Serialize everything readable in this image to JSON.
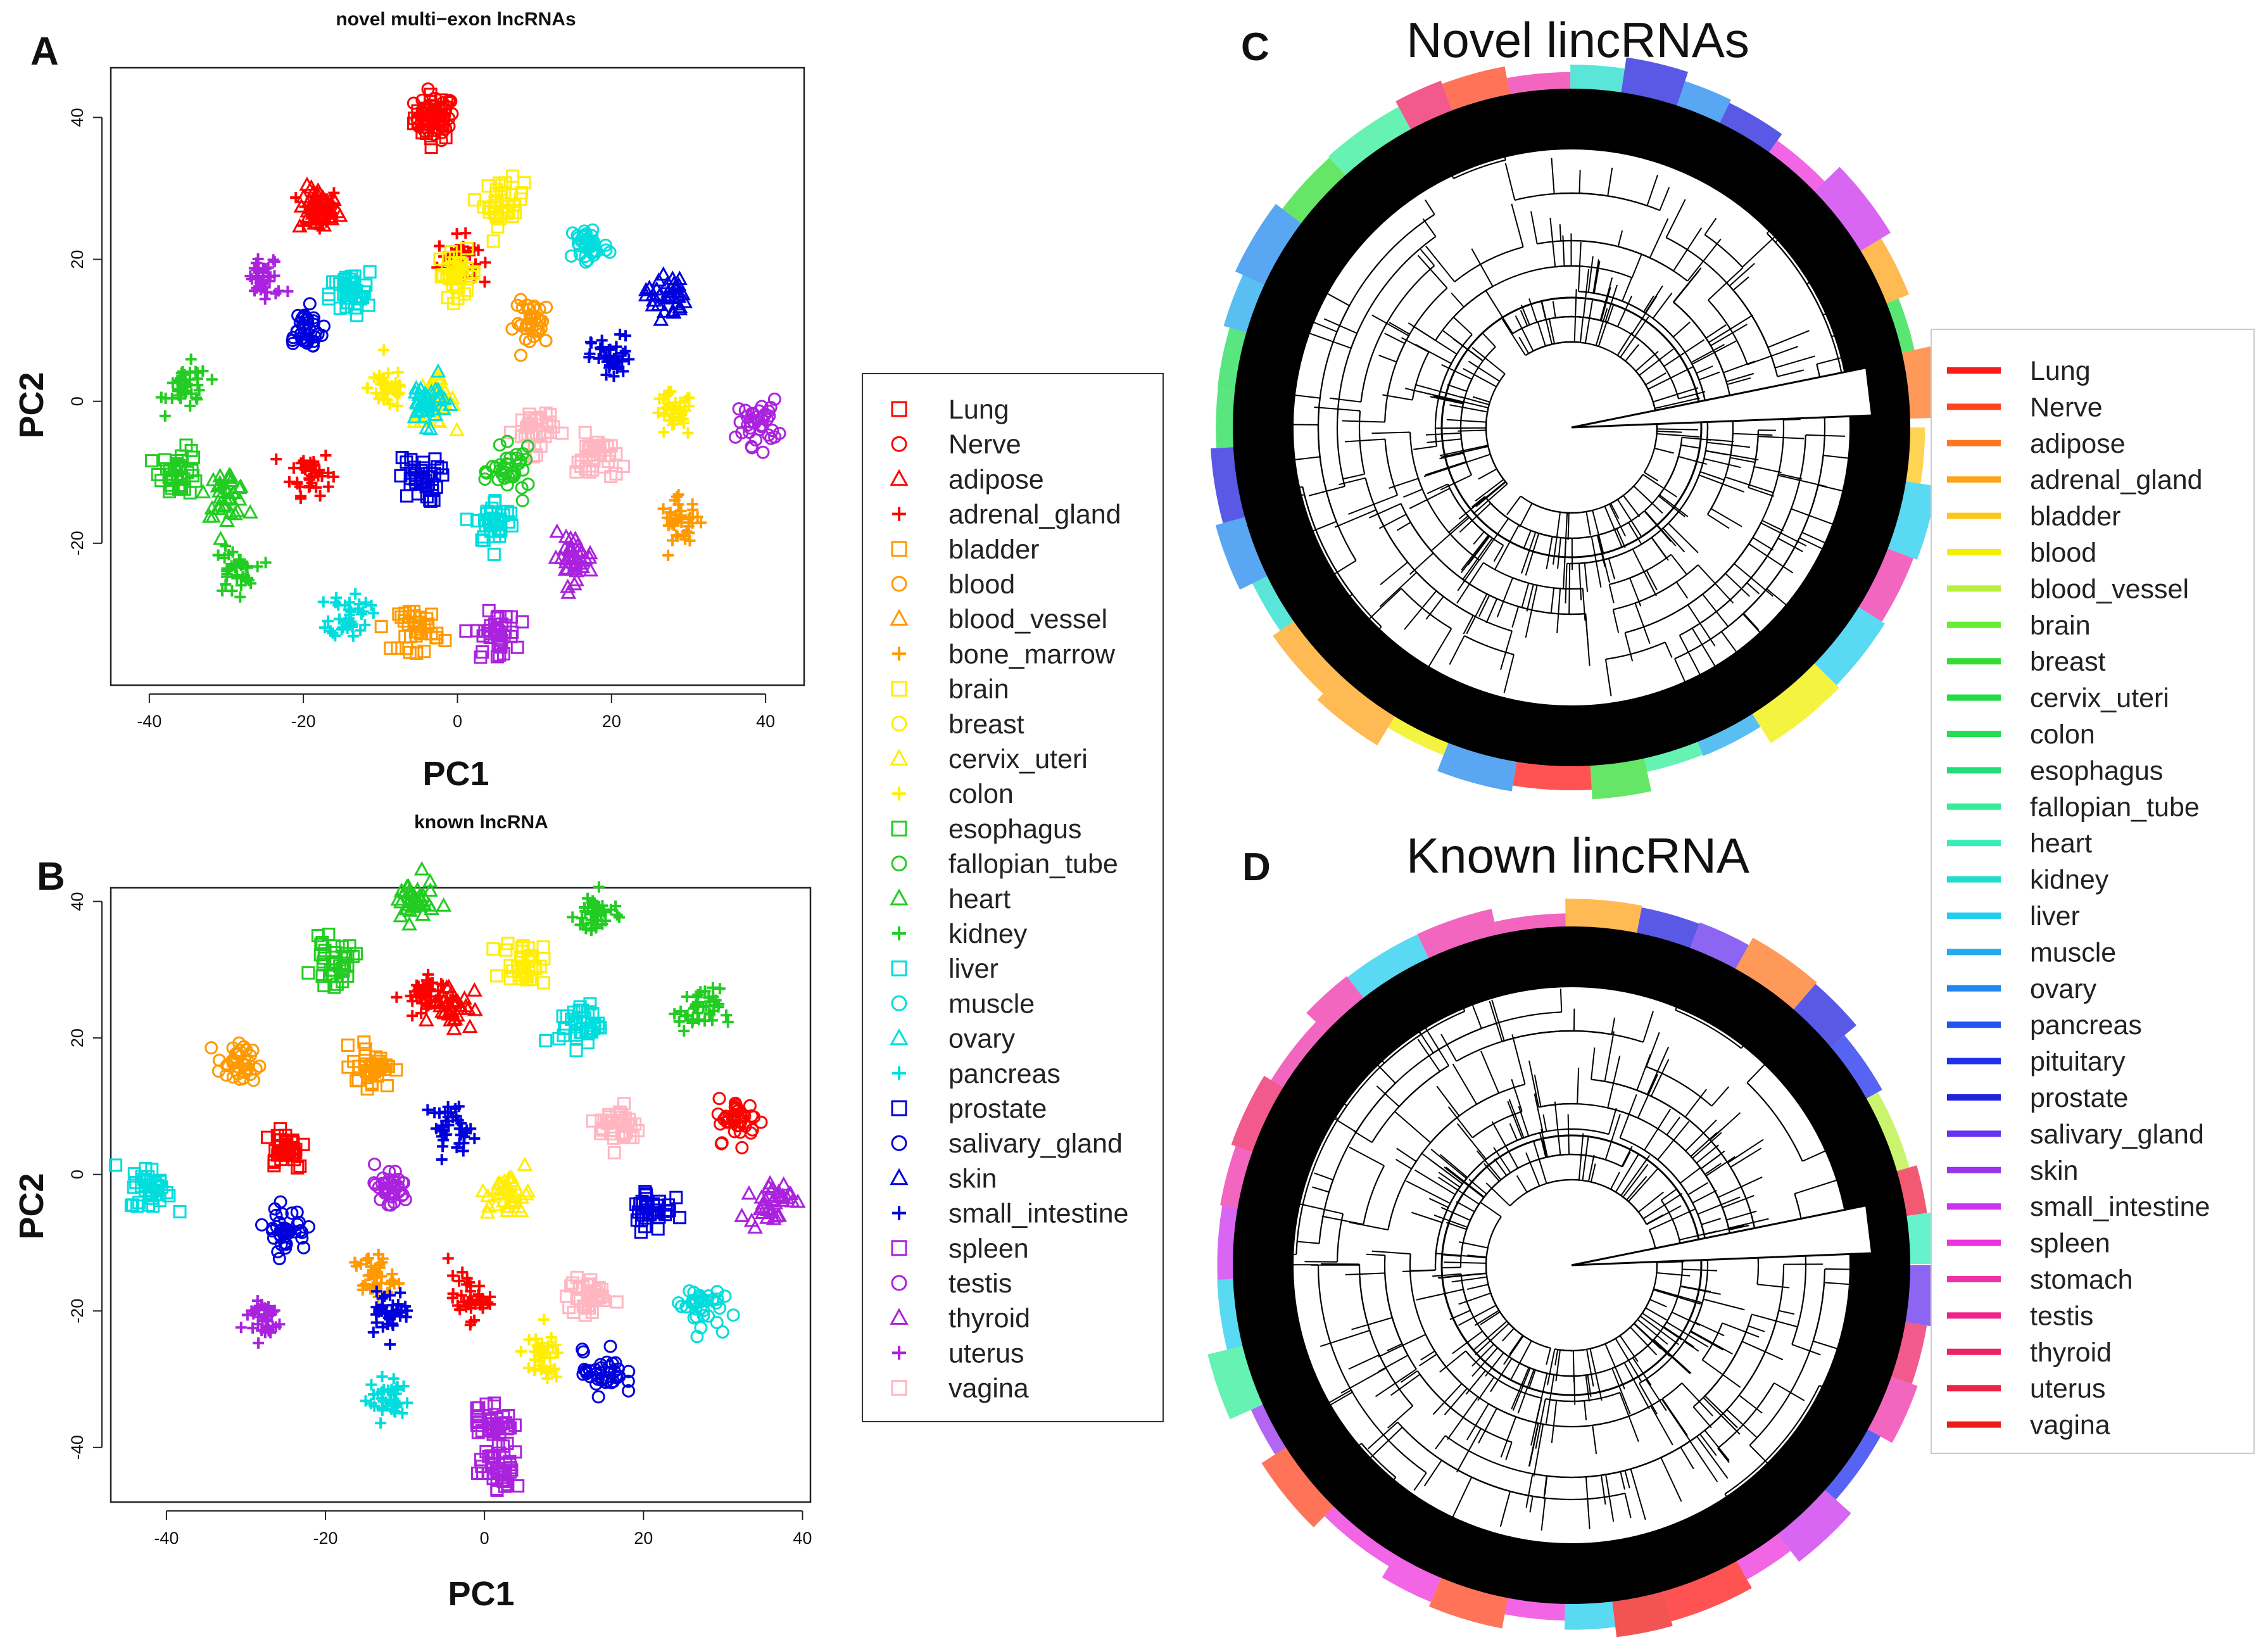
{
  "panels": {
    "A": "A",
    "B": "B",
    "C": "C",
    "D": "D"
  },
  "chart_data": [
    {
      "id": "A",
      "type": "scatter",
      "title": "novel multi−exon lncRNAs",
      "xlabel": "PC1",
      "ylabel": "PC2",
      "xlim": [
        -45,
        45
      ],
      "ylim": [
        -40,
        47
      ],
      "xticks": [
        -40,
        -20,
        0,
        20,
        40
      ],
      "yticks": [
        -20,
        0,
        20,
        40
      ],
      "clusters": [
        {
          "tissue": "Lung",
          "x": -3,
          "y": 40
        },
        {
          "tissue": "Nerve",
          "x": -3,
          "y": 40
        },
        {
          "tissue": "adipose",
          "x": -18,
          "y": 27
        },
        {
          "tissue": "adrenal_gland",
          "x": -18,
          "y": 27
        },
        {
          "tissue": "adrenal_gland",
          "x": -19,
          "y": -10
        },
        {
          "tissue": "adrenal_gland",
          "x": 0,
          "y": 20
        },
        {
          "tissue": "brain",
          "x": 6,
          "y": 28
        },
        {
          "tissue": "brain",
          "x": 0,
          "y": 18
        },
        {
          "tissue": "cervix_uteri",
          "x": -3,
          "y": 0
        },
        {
          "tissue": "colon",
          "x": -9,
          "y": 2
        },
        {
          "tissue": "colon",
          "x": 28,
          "y": -2
        },
        {
          "tissue": "kidney",
          "x": -35,
          "y": 2
        },
        {
          "tissue": "esophagus",
          "x": -36,
          "y": -10
        },
        {
          "tissue": "heart",
          "x": -30,
          "y": -13
        },
        {
          "tissue": "kidney",
          "x": -29,
          "y": -24
        },
        {
          "tissue": "liver",
          "x": -14,
          "y": 15
        },
        {
          "tissue": "muscle",
          "x": 17,
          "y": 22
        },
        {
          "tissue": "liver",
          "x": 5,
          "y": -17
        },
        {
          "tissue": "pancreas",
          "x": -14,
          "y": -30
        },
        {
          "tissue": "salivary_gland",
          "x": -20,
          "y": 10
        },
        {
          "tissue": "prostate",
          "x": -5,
          "y": -11
        },
        {
          "tissue": "skin",
          "x": 27,
          "y": 15
        },
        {
          "tissue": "small_intestine",
          "x": 20,
          "y": 6
        },
        {
          "tissue": "uterus",
          "x": -25,
          "y": 17
        },
        {
          "tissue": "testis",
          "x": 39,
          "y": -3
        },
        {
          "tissue": "spleen",
          "x": 5,
          "y": -33
        },
        {
          "tissue": "thyroid",
          "x": 15,
          "y": -22
        },
        {
          "tissue": "blood",
          "x": 10,
          "y": 11
        },
        {
          "tissue": "bladder",
          "x": -5,
          "y": -32
        },
        {
          "tissue": "bone_marrow",
          "x": 29,
          "y": -17
        },
        {
          "tissue": "vagina",
          "x": 10,
          "y": -4
        },
        {
          "tissue": "vagina",
          "x": 18,
          "y": -8
        },
        {
          "tissue": "ovary",
          "x": -4,
          "y": 0
        },
        {
          "tissue": "fallopian_tube",
          "x": 7,
          "y": -10
        }
      ]
    },
    {
      "id": "B",
      "type": "scatter",
      "title": "known lncRNA",
      "xlabel": "PC1",
      "ylabel": "PC2",
      "xlim": [
        -47,
        41
      ],
      "ylim": [
        -48,
        42
      ],
      "xticks": [
        -40,
        -20,
        0,
        20,
        40
      ],
      "yticks": [
        -40,
        -20,
        0,
        20,
        40
      ],
      "clusters": [
        {
          "tissue": "heart",
          "x": -9,
          "y": 40
        },
        {
          "tissue": "kidney",
          "x": 14,
          "y": 38
        },
        {
          "tissue": "esophagus",
          "x": -19,
          "y": 31
        },
        {
          "tissue": "brain",
          "x": 5,
          "y": 31
        },
        {
          "tissue": "adipose",
          "x": -4,
          "y": 25
        },
        {
          "tissue": "adrenal_gland",
          "x": -8,
          "y": 26
        },
        {
          "tissue": "kidney",
          "x": 27,
          "y": 24
        },
        {
          "tissue": "blood",
          "x": -31,
          "y": 16
        },
        {
          "tissue": "bladder",
          "x": -14,
          "y": 16
        },
        {
          "tissue": "liver",
          "x": 12,
          "y": 22
        },
        {
          "tissue": "vagina",
          "x": 17,
          "y": 7
        },
        {
          "tissue": "Lung",
          "x": -25,
          "y": 4
        },
        {
          "tissue": "Nerve",
          "x": 32,
          "y": 8
        },
        {
          "tissue": "liver",
          "x": -42,
          "y": -2
        },
        {
          "tissue": "prostate",
          "x": 21,
          "y": -5
        },
        {
          "tissue": "salivary_gland",
          "x": -25,
          "y": -8
        },
        {
          "tissue": "testis",
          "x": -12,
          "y": -2
        },
        {
          "tissue": "thyroid",
          "x": 36,
          "y": -4
        },
        {
          "tissue": "small_intestine",
          "x": -4,
          "y": 7
        },
        {
          "tissue": "cervix_uteri",
          "x": 3,
          "y": -3
        },
        {
          "tissue": "bone_marrow",
          "x": -14,
          "y": -15
        },
        {
          "tissue": "adrenal_gland",
          "x": -2,
          "y": -18
        },
        {
          "tissue": "vagina",
          "x": 13,
          "y": -18
        },
        {
          "tissue": "muscle",
          "x": 27,
          "y": -19
        },
        {
          "tissue": "uterus",
          "x": -28,
          "y": -21
        },
        {
          "tissue": "pancreas",
          "x": -12,
          "y": -33
        },
        {
          "tissue": "colon",
          "x": 7,
          "y": -27
        },
        {
          "tissue": "salivary_gland",
          "x": 15,
          "y": -29
        },
        {
          "tissue": "spleen",
          "x": 1,
          "y": -36
        },
        {
          "tissue": "spleen",
          "x": 2,
          "y": -43
        },
        {
          "tissue": "small_intestine",
          "x": -12,
          "y": -20
        }
      ]
    },
    {
      "id": "C",
      "type": "dendrogram",
      "title": "Novel lincRNAs",
      "legend_position": "right"
    },
    {
      "id": "D",
      "type": "dendrogram",
      "title": "Known lincRNA",
      "legend_position": "right"
    }
  ],
  "legend_scatter": [
    {
      "label": "Lung",
      "color": "#ff0000",
      "shape": "square"
    },
    {
      "label": "Nerve",
      "color": "#ff0000",
      "shape": "circle"
    },
    {
      "label": "adipose",
      "color": "#ff0000",
      "shape": "triangle"
    },
    {
      "label": "adrenal_gland",
      "color": "#ff0000",
      "shape": "plus"
    },
    {
      "label": "bladder",
      "color": "#ff9900",
      "shape": "square"
    },
    {
      "label": "blood",
      "color": "#ff9900",
      "shape": "circle"
    },
    {
      "label": "blood_vessel",
      "color": "#ff9900",
      "shape": "triangle"
    },
    {
      "label": "bone_marrow",
      "color": "#ff9900",
      "shape": "plus"
    },
    {
      "label": "brain",
      "color": "#ffee00",
      "shape": "square"
    },
    {
      "label": "breast",
      "color": "#ffee00",
      "shape": "circle"
    },
    {
      "label": "cervix_uteri",
      "color": "#ffee00",
      "shape": "triangle"
    },
    {
      "label": "colon",
      "color": "#ffee00",
      "shape": "plus"
    },
    {
      "label": "esophagus",
      "color": "#22cc22",
      "shape": "square"
    },
    {
      "label": "fallopian_tube",
      "color": "#22cc22",
      "shape": "circle"
    },
    {
      "label": "heart",
      "color": "#22cc22",
      "shape": "triangle"
    },
    {
      "label": "kidney",
      "color": "#22cc22",
      "shape": "plus"
    },
    {
      "label": "liver",
      "color": "#00dddd",
      "shape": "square"
    },
    {
      "label": "muscle",
      "color": "#00dddd",
      "shape": "circle"
    },
    {
      "label": "ovary",
      "color": "#00dddd",
      "shape": "triangle"
    },
    {
      "label": "pancreas",
      "color": "#00dddd",
      "shape": "plus"
    },
    {
      "label": "prostate",
      "color": "#0000dd",
      "shape": "square"
    },
    {
      "label": "salivary_gland",
      "color": "#0000dd",
      "shape": "circle"
    },
    {
      "label": "skin",
      "color": "#0000dd",
      "shape": "triangle"
    },
    {
      "label": "small_intestine",
      "color": "#0000dd",
      "shape": "plus"
    },
    {
      "label": "spleen",
      "color": "#aa22dd",
      "shape": "square"
    },
    {
      "label": "testis",
      "color": "#aa22dd",
      "shape": "circle"
    },
    {
      "label": "thyroid",
      "color": "#aa22dd",
      "shape": "triangle"
    },
    {
      "label": "uterus",
      "color": "#aa22dd",
      "shape": "plus"
    },
    {
      "label": "vagina",
      "color": "#ffb6c1",
      "shape": "square"
    }
  ],
  "legend_tree": [
    {
      "label": "Lung",
      "color": "#ff1a1a"
    },
    {
      "label": "Nerve",
      "color": "#ff4422"
    },
    {
      "label": "adipose",
      "color": "#ff7722"
    },
    {
      "label": "adrenal_gland",
      "color": "#ffa31a"
    },
    {
      "label": "bladder",
      "color": "#ffc61a"
    },
    {
      "label": "blood",
      "color": "#f0f000"
    },
    {
      "label": "blood_vessel",
      "color": "#b8f03c"
    },
    {
      "label": "brain",
      "color": "#66ee33"
    },
    {
      "label": "breast",
      "color": "#33dd33"
    },
    {
      "label": "cervix_uteri",
      "color": "#22dd44"
    },
    {
      "label": "colon",
      "color": "#22dd55"
    },
    {
      "label": "esophagus",
      "color": "#22dd77"
    },
    {
      "label": "fallopian_tube",
      "color": "#33ee99"
    },
    {
      "label": "heart",
      "color": "#33eebb"
    },
    {
      "label": "kidney",
      "color": "#22ddcc"
    },
    {
      "label": "liver",
      "color": "#22ccee"
    },
    {
      "label": "muscle",
      "color": "#22aaee"
    },
    {
      "label": "ovary",
      "color": "#2288ee"
    },
    {
      "label": "pancreas",
      "color": "#2255ee"
    },
    {
      "label": "pituitary",
      "color": "#1f2fee"
    },
    {
      "label": "prostate",
      "color": "#2222dd"
    },
    {
      "label": "salivary_gland",
      "color": "#6633ee"
    },
    {
      "label": "skin",
      "color": "#9933ee"
    },
    {
      "label": "small_intestine",
      "color": "#cc33ee"
    },
    {
      "label": "spleen",
      "color": "#ee33dd"
    },
    {
      "label": "stomach",
      "color": "#ee33aa"
    },
    {
      "label": "testis",
      "color": "#ee2288"
    },
    {
      "label": "thyroid",
      "color": "#ee2266"
    },
    {
      "label": "uterus",
      "color": "#ee2244"
    },
    {
      "label": "vagina",
      "color": "#ee1a1a"
    }
  ]
}
